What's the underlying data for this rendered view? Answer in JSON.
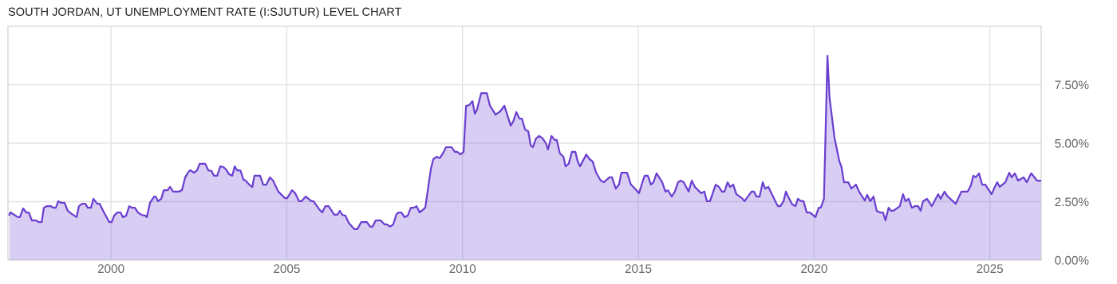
{
  "chart_data": {
    "type": "area",
    "title": "SOUTH JORDAN, UT UNEMPLOYMENT RATE (I:SJUTUR) LEVEL CHART",
    "x": [
      1997.11,
      1997.14,
      1997.35,
      1997.41,
      1997.5,
      1997.59,
      1997.66,
      1997.75,
      1997.87,
      1997.94,
      1998.03,
      1998.09,
      1998.18,
      1998.28,
      1998.37,
      1998.43,
      1998.5,
      1998.59,
      1998.68,
      1998.77,
      1998.89,
      1999.02,
      1999.09,
      1999.18,
      1999.27,
      1999.34,
      1999.43,
      1999.5,
      1999.61,
      1999.68,
      1999.8,
      1999.95,
      2000.02,
      2000.09,
      2000.18,
      2000.27,
      2000.34,
      2000.43,
      2000.52,
      2000.59,
      2000.68,
      2000.77,
      2000.86,
      2000.98,
      2001.02,
      2001.11,
      2001.23,
      2001.27,
      2001.34,
      2001.43,
      2001.5,
      2001.61,
      2001.68,
      2001.77,
      2001.93,
      2002.02,
      2002.11,
      2002.22,
      2002.27,
      2002.36,
      2002.45,
      2002.52,
      2002.68,
      2002.77,
      2002.86,
      2002.93,
      2003.02,
      2003.11,
      2003.2,
      2003.29,
      2003.36,
      2003.45,
      2003.52,
      2003.59,
      2003.68,
      2003.77,
      2003.83,
      2003.95,
      2004.02,
      2004.08,
      2004.24,
      2004.33,
      2004.42,
      2004.52,
      2004.61,
      2004.76,
      2004.95,
      2005.01,
      2005.15,
      2005.24,
      2005.35,
      2005.42,
      2005.54,
      2005.7,
      2005.76,
      2005.92,
      2006.01,
      2006.1,
      2006.19,
      2006.35,
      2006.44,
      2006.51,
      2006.58,
      2006.67,
      2006.76,
      2006.92,
      2007.01,
      2007.12,
      2007.28,
      2007.37,
      2007.44,
      2007.53,
      2007.67,
      2007.78,
      2007.85,
      2007.94,
      2008.03,
      2008.12,
      2008.19,
      2008.26,
      2008.35,
      2008.44,
      2008.53,
      2008.62,
      2008.69,
      2008.78,
      2008.94,
      2009.1,
      2009.17,
      2009.26,
      2009.35,
      2009.44,
      2009.53,
      2009.69,
      2009.78,
      2009.85,
      2009.94,
      2010.03,
      2010.1,
      2010.19,
      2010.28,
      2010.35,
      2010.41,
      2010.53,
      2010.69,
      2010.78,
      2010.94,
      2011.07,
      2011.19,
      2011.37,
      2011.44,
      2011.53,
      2011.62,
      2011.69,
      2011.78,
      2011.87,
      2011.94,
      2012.0,
      2012.09,
      2012.18,
      2012.28,
      2012.37,
      2012.43,
      2012.53,
      2012.62,
      2012.68,
      2012.77,
      2012.87,
      2012.93,
      2013.02,
      2013.11,
      2013.21,
      2013.27,
      2013.34,
      2013.52,
      2013.61,
      2013.7,
      2013.8,
      2013.93,
      2014.02,
      2014.18,
      2014.25,
      2014.36,
      2014.45,
      2014.52,
      2014.68,
      2014.79,
      2014.86,
      2015.02,
      2015.11,
      2015.18,
      2015.27,
      2015.36,
      2015.43,
      2015.52,
      2015.68,
      2015.77,
      2015.84,
      2015.95,
      2016.04,
      2016.13,
      2016.2,
      2016.29,
      2016.43,
      2016.52,
      2016.61,
      2016.7,
      2016.79,
      2016.88,
      2016.95,
      2017.04,
      2017.2,
      2017.29,
      2017.38,
      2017.45,
      2017.54,
      2017.61,
      2017.7,
      2017.79,
      2017.95,
      2018.02,
      2018.22,
      2018.29,
      2018.36,
      2018.45,
      2018.54,
      2018.61,
      2018.7,
      2018.92,
      2018.97,
      2019.04,
      2019.13,
      2019.2,
      2019.26,
      2019.38,
      2019.47,
      2019.54,
      2019.63,
      2019.7,
      2019.79,
      2019.88,
      2020.04,
      2020.13,
      2020.19,
      2020.28,
      2020.38,
      2020.44,
      2020.58,
      2020.72,
      2020.78,
      2020.85,
      2020.97,
      2021.06,
      2021.19,
      2021.28,
      2021.44,
      2021.51,
      2021.6,
      2021.69,
      2021.78,
      2021.87,
      2021.96,
      2022.03,
      2022.12,
      2022.19,
      2022.26,
      2022.44,
      2022.53,
      2022.6,
      2022.69,
      2022.78,
      2022.87,
      2022.96,
      2023.03,
      2023.1,
      2023.21,
      2023.35,
      2023.53,
      2023.6,
      2023.71,
      2023.8,
      2024.03,
      2024.19,
      2024.37,
      2024.46,
      2024.53,
      2024.6,
      2024.69,
      2024.78,
      2024.87,
      2025.05,
      2025.14,
      2025.21,
      2025.28,
      2025.44,
      2025.55,
      2025.62,
      2025.71,
      2025.8,
      2025.96,
      2026.05,
      2026.14,
      2026.18,
      2026.34,
      2026.46
    ],
    "series": [
      {
        "color": "#6a3fd0",
        "values": [
          1.94,
          2.04,
          1.84,
          1.84,
          2.21,
          2.04,
          2.04,
          1.7,
          1.7,
          1.63,
          1.63,
          2.24,
          2.31,
          2.31,
          2.24,
          2.24,
          2.52,
          2.45,
          2.45,
          2.11,
          1.97,
          1.84,
          2.31,
          2.41,
          2.41,
          2.24,
          2.24,
          2.62,
          2.41,
          2.41,
          2.04,
          1.63,
          1.63,
          1.9,
          2.04,
          2.04,
          1.84,
          1.9,
          2.31,
          2.24,
          2.24,
          2.04,
          1.94,
          1.9,
          1.84,
          2.45,
          2.72,
          2.72,
          2.52,
          2.62,
          2.99,
          2.99,
          3.13,
          2.93,
          2.93,
          2.99,
          3.54,
          3.81,
          3.84,
          3.74,
          3.84,
          4.12,
          4.12,
          3.84,
          3.81,
          3.61,
          3.61,
          4.01,
          3.98,
          3.84,
          3.67,
          3.61,
          4.01,
          3.84,
          3.84,
          3.44,
          3.4,
          3.2,
          3.13,
          3.61,
          3.61,
          3.23,
          3.23,
          3.54,
          3.4,
          2.93,
          2.65,
          2.65,
          2.99,
          2.86,
          2.52,
          2.52,
          2.72,
          2.52,
          2.52,
          2.18,
          2.04,
          2.31,
          2.31,
          1.94,
          1.94,
          2.11,
          1.94,
          1.9,
          1.6,
          1.33,
          1.33,
          1.63,
          1.63,
          1.43,
          1.43,
          1.7,
          1.7,
          1.53,
          1.53,
          1.43,
          1.53,
          1.97,
          2.04,
          2.04,
          1.84,
          1.9,
          2.24,
          2.24,
          2.31,
          2.04,
          2.24,
          3.91,
          4.32,
          4.42,
          4.36,
          4.56,
          4.83,
          4.83,
          4.63,
          4.63,
          4.52,
          4.63,
          6.6,
          6.63,
          6.8,
          6.26,
          6.43,
          7.14,
          7.14,
          6.6,
          6.22,
          6.36,
          6.6,
          5.75,
          5.92,
          6.33,
          6.05,
          6.05,
          5.58,
          5.51,
          4.9,
          4.83,
          5.2,
          5.31,
          5.2,
          5.0,
          4.73,
          5.31,
          5.14,
          5.14,
          4.56,
          4.42,
          4.01,
          4.12,
          4.63,
          4.63,
          4.25,
          4.01,
          4.52,
          4.32,
          4.22,
          3.74,
          3.4,
          3.33,
          3.54,
          3.54,
          3.06,
          3.23,
          3.74,
          3.74,
          3.23,
          3.13,
          2.86,
          3.3,
          3.61,
          3.61,
          3.23,
          3.33,
          3.71,
          3.33,
          2.93,
          2.99,
          2.72,
          2.93,
          3.33,
          3.4,
          3.33,
          2.93,
          3.4,
          3.13,
          2.99,
          2.86,
          2.93,
          2.52,
          2.52,
          3.23,
          3.13,
          2.93,
          2.93,
          3.33,
          3.13,
          3.23,
          2.82,
          2.65,
          2.52,
          2.93,
          2.93,
          2.72,
          2.72,
          3.33,
          3.06,
          3.13,
          2.45,
          2.31,
          2.31,
          2.52,
          2.93,
          2.72,
          2.38,
          2.31,
          2.62,
          2.52,
          2.52,
          2.04,
          2.04,
          1.84,
          2.24,
          2.24,
          2.62,
          8.74,
          6.94,
          5.24,
          4.22,
          3.98,
          3.33,
          3.33,
          3.06,
          3.23,
          2.93,
          2.55,
          2.79,
          2.52,
          2.72,
          2.11,
          2.04,
          2.04,
          1.7,
          2.24,
          2.11,
          2.11,
          2.31,
          2.82,
          2.52,
          2.62,
          2.24,
          2.31,
          2.31,
          2.11,
          2.52,
          2.62,
          2.31,
          2.82,
          2.62,
          2.93,
          2.72,
          2.41,
          2.93,
          2.93,
          3.2,
          3.61,
          3.54,
          3.71,
          3.23,
          3.23,
          2.82,
          3.13,
          3.33,
          3.13,
          3.33,
          3.74,
          3.54,
          3.71,
          3.4,
          3.54,
          3.33,
          3.61,
          3.71,
          3.4,
          3.4
        ]
      }
    ],
    "xlim": [
      1997.07,
      2026.46
    ],
    "xticks": [
      2000,
      2005,
      2010,
      2015,
      2020,
      2025
    ],
    "ylim": [
      0,
      10
    ],
    "yticks": [
      {
        "value": 0,
        "label": "0.00%"
      },
      {
        "value": 2.5,
        "label": "2.50%"
      },
      {
        "value": 5,
        "label": "5.00%"
      },
      {
        "value": 7.5,
        "label": "7.50%"
      }
    ],
    "grid": true
  }
}
